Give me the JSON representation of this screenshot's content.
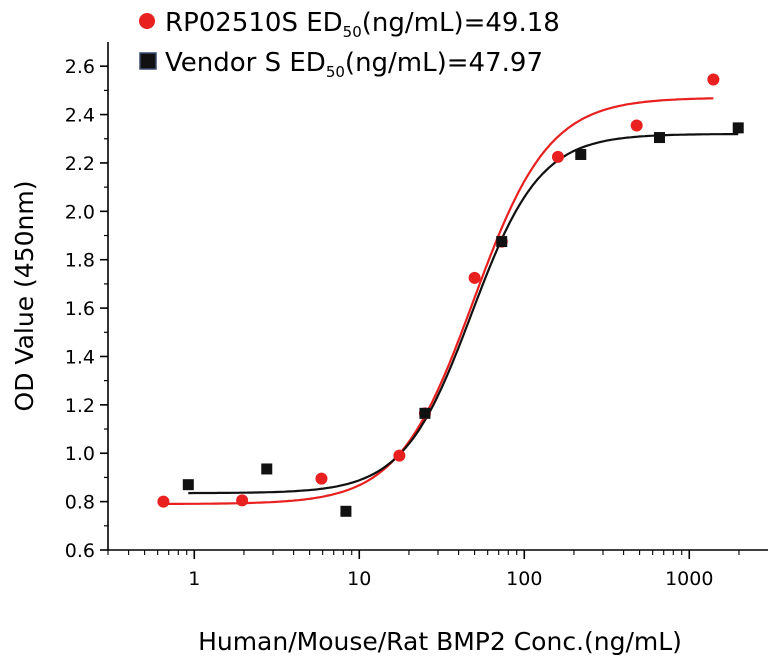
{
  "chart_data": {
    "type": "scatter",
    "x_scale": "log",
    "xlabel": "Human/Mouse/Rat BMP2 Conc.(ng/mL)",
    "ylabel": "OD Value (450nm)",
    "xlim": [
      0.3,
      3000
    ],
    "ylim": [
      0.6,
      2.7
    ],
    "x_ticks": [
      1,
      10,
      100,
      1000
    ],
    "x_tick_labels": [
      "1",
      "10",
      "100",
      "1000"
    ],
    "y_ticks": [
      0.6,
      0.8,
      1.0,
      1.2,
      1.4,
      1.6,
      1.8,
      2.0,
      2.2,
      2.4,
      2.6
    ],
    "y_tick_labels": [
      "0.6",
      "0.8",
      "1.0",
      "1.2",
      "1.4",
      "1.6",
      "1.8",
      "2.0",
      "2.2",
      "2.4",
      "2.6"
    ],
    "grid": false,
    "legend_position": "top-left",
    "series": [
      {
        "name": "RP02510S ED50(ng/mL)=49.18",
        "legend_main": "RP02510S ED",
        "legend_sub": "50",
        "legend_tail": "(ng/mL)=49.18",
        "marker": "circle",
        "color": "#e8201f",
        "x": [
          0.65,
          1.95,
          5.9,
          17.5,
          25,
          50,
          73,
          160,
          480,
          1400
        ],
        "y": [
          0.8,
          0.805,
          0.895,
          0.99,
          1.165,
          1.725,
          1.875,
          2.225,
          2.355,
          2.545
        ],
        "fit": {
          "bottom": 0.79,
          "top": 2.47,
          "ec50": 49.18,
          "hill": 1.9,
          "x_start": 0.65,
          "x_end": 1400
        }
      },
      {
        "name": "Vendor S ED50(ng/mL)=47.97",
        "legend_main": "Vendor S ED",
        "legend_sub": "50",
        "legend_tail": "(ng/mL)=47.97",
        "marker": "square",
        "color": "#111111",
        "x": [
          0.92,
          2.75,
          8.3,
          25,
          73,
          220,
          660,
          1980
        ],
        "y": [
          0.87,
          0.935,
          0.76,
          1.165,
          1.875,
          2.235,
          2.305,
          2.345
        ],
        "fit": {
          "bottom": 0.835,
          "top": 2.32,
          "ec50": 47.97,
          "hill": 2.1,
          "x_start": 0.92,
          "x_end": 1980
        }
      }
    ]
  }
}
